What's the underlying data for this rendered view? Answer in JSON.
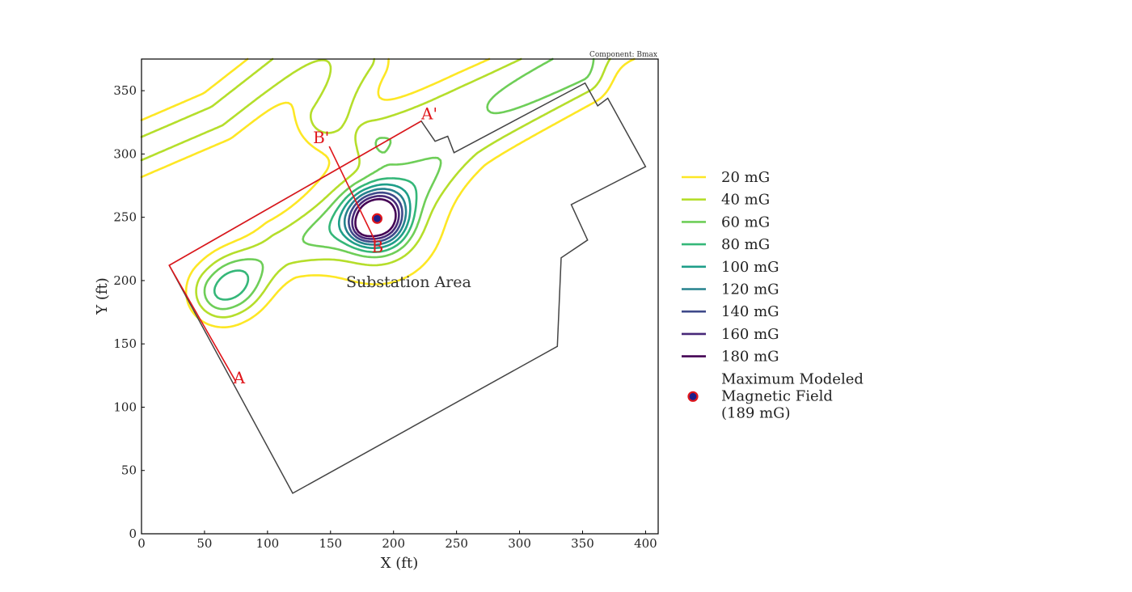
{
  "chart_data": {
    "type": "contour",
    "annotation_top_right": "Component: Bmax",
    "xlabel": "X (ft)",
    "ylabel": "Y (ft)",
    "xlim": [
      0,
      410
    ],
    "ylim": [
      0,
      375
    ],
    "xticks": [
      0,
      50,
      100,
      150,
      200,
      250,
      300,
      350,
      400
    ],
    "yticks": [
      0,
      50,
      100,
      150,
      200,
      250,
      300,
      350
    ],
    "grid": false,
    "legend_position": "right",
    "area_label": {
      "text": "Substation Area",
      "x": 212,
      "y": 195
    },
    "contour_levels": [
      {
        "label": "20 mG",
        "value": 20,
        "color": "#fde725"
      },
      {
        "label": "40 mG",
        "value": 40,
        "color": "#b5de2b"
      },
      {
        "label": "60 mG",
        "value": 60,
        "color": "#6ece58"
      },
      {
        "label": "80 mG",
        "value": 80,
        "color": "#35b779"
      },
      {
        "label": "100 mG",
        "value": 100,
        "color": "#1f9e89"
      },
      {
        "label": "120 mG",
        "value": 120,
        "color": "#26828e"
      },
      {
        "label": "140 mG",
        "value": 140,
        "color": "#3e4989"
      },
      {
        "label": "160 mG",
        "value": 160,
        "color": "#482878"
      },
      {
        "label": "180 mG",
        "value": 180,
        "color": "#440154"
      }
    ],
    "max_point": {
      "label": "Maximum Modeled\nMagnetic Field\n(189 mG)",
      "x": 187,
      "y": 249,
      "value": 189
    },
    "substation_boundary": [
      [
        22,
        212
      ],
      [
        120,
        32
      ],
      [
        330,
        148
      ],
      [
        333,
        218
      ],
      [
        354,
        232
      ],
      [
        341,
        260
      ],
      [
        400,
        290
      ],
      [
        370,
        344
      ],
      [
        362,
        338
      ],
      [
        352,
        356
      ],
      [
        248,
        301
      ],
      [
        243,
        314
      ],
      [
        233,
        310
      ],
      [
        222,
        326
      ],
      [
        22,
        212
      ]
    ],
    "cross_sections": [
      {
        "name": "A-A'",
        "start_label": "A",
        "end_label": "A'",
        "start": [
          75,
          120
        ],
        "corner": [
          22,
          212
        ],
        "end": [
          222,
          326
        ]
      },
      {
        "name": "B-B'",
        "start_label": "B",
        "end_label": "B'",
        "start": [
          186,
          230
        ],
        "end": [
          149,
          306
        ]
      }
    ]
  }
}
